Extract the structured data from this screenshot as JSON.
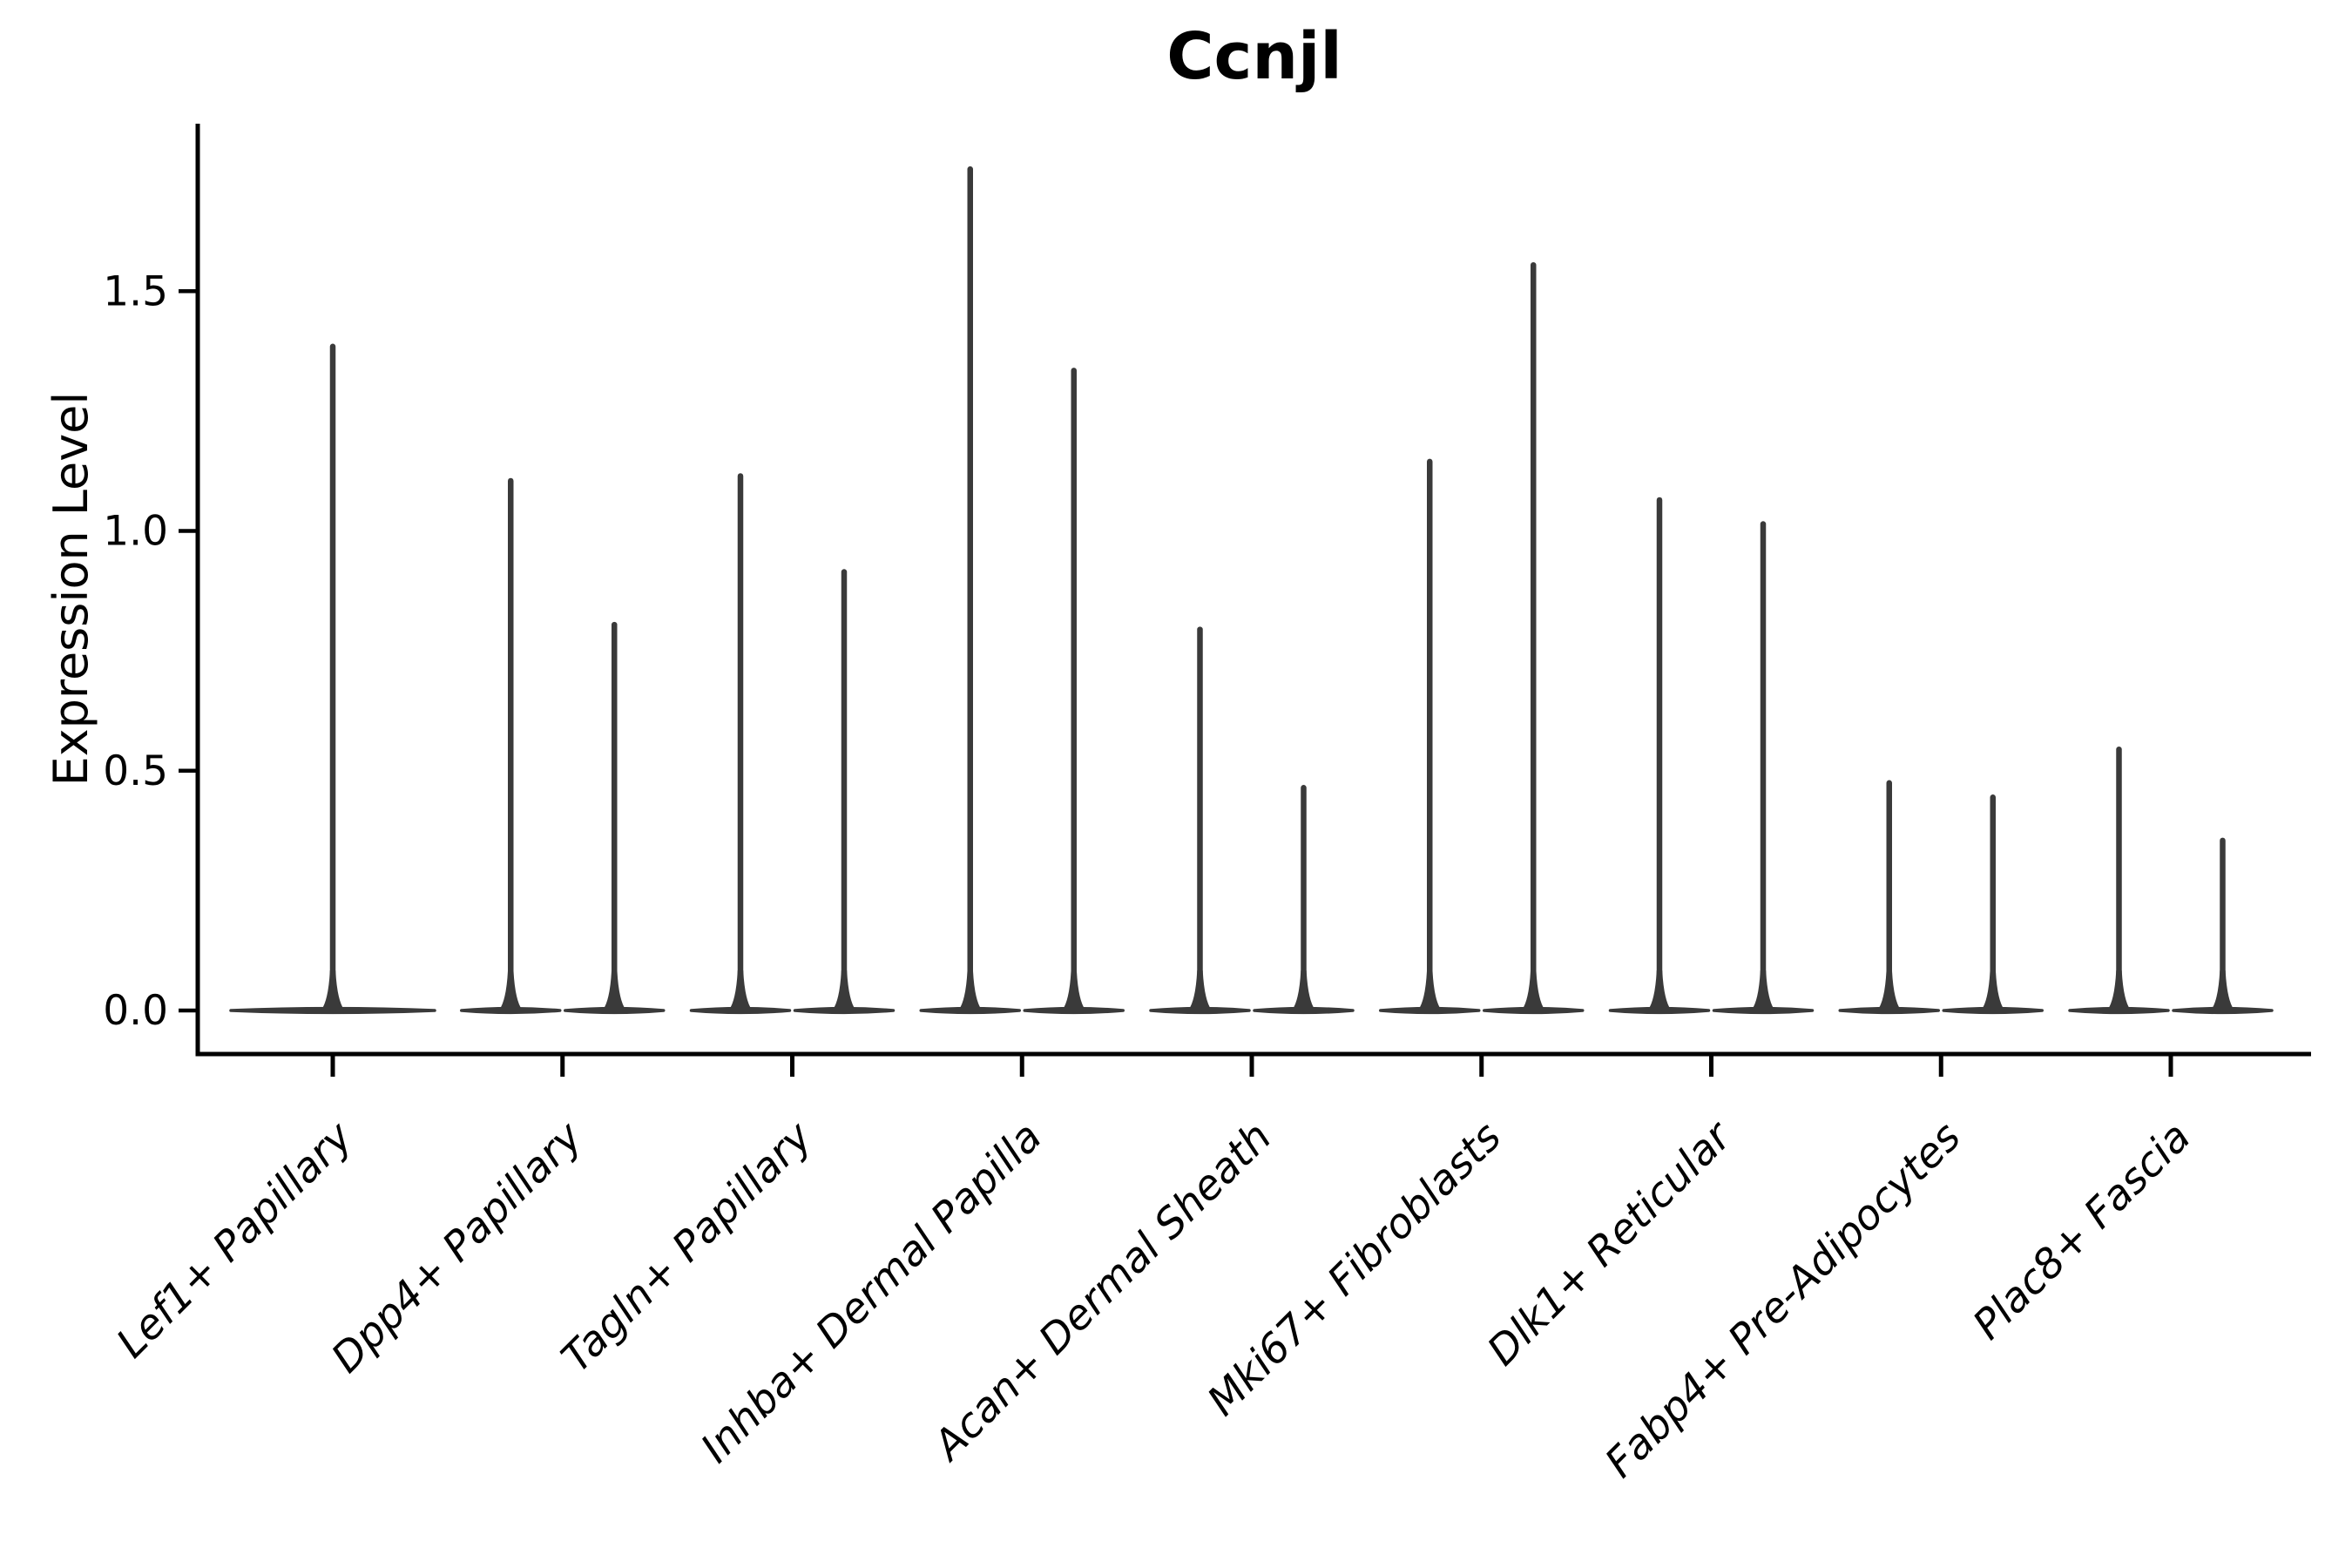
{
  "colors": {
    "violin": "#3a3a3a",
    "axis": "#000000",
    "text": "#000000",
    "background": "#ffffff"
  },
  "chart_data": {
    "type": "violin",
    "title": "Ccnjl",
    "xlabel": "",
    "ylabel": "Expression Level",
    "ylim": [
      0,
      1.85
    ],
    "ytick_labels": [
      "0.0",
      "0.5",
      "1.0",
      "1.5"
    ],
    "ytick_values": [
      0.0,
      0.5,
      1.0,
      1.5
    ],
    "grid": false,
    "legend": false,
    "baseline_value": 0.0,
    "categories": [
      "Lef1+ Papillary",
      "Dpp4+ Papillary",
      "Tagln+ Papillary",
      "Inhba+ Dermal Papilla",
      "Acan+ Dermal Sheath",
      "Mki67+ Fibroblasts",
      "Dlk1+ Reticular",
      "Fabp4+ Pre-Adipocytes",
      "Plac8+ Fascia"
    ],
    "violins": [
      {
        "category": "Lef1+ Papillary",
        "spike_maxima": [
          1.39
        ]
      },
      {
        "category": "Dpp4+ Papillary",
        "spike_maxima": [
          1.11,
          0.81
        ]
      },
      {
        "category": "Tagln+ Papillary",
        "spike_maxima": [
          1.12,
          0.92
        ]
      },
      {
        "category": "Inhba+ Dermal Papilla",
        "spike_maxima": [
          1.76,
          1.34
        ]
      },
      {
        "category": "Acan+ Dermal Sheath",
        "spike_maxima": [
          0.8,
          0.47
        ]
      },
      {
        "category": "Mki67+ Fibroblasts",
        "spike_maxima": [
          1.15,
          1.56
        ]
      },
      {
        "category": "Dlk1+ Reticular",
        "spike_maxima": [
          1.07,
          1.02
        ]
      },
      {
        "category": "Fabp4+ Pre-Adipocytes",
        "spike_maxima": [
          0.48,
          0.45
        ]
      },
      {
        "category": "Plac8+ Fascia",
        "spike_maxima": [
          0.55,
          0.36
        ]
      }
    ]
  }
}
